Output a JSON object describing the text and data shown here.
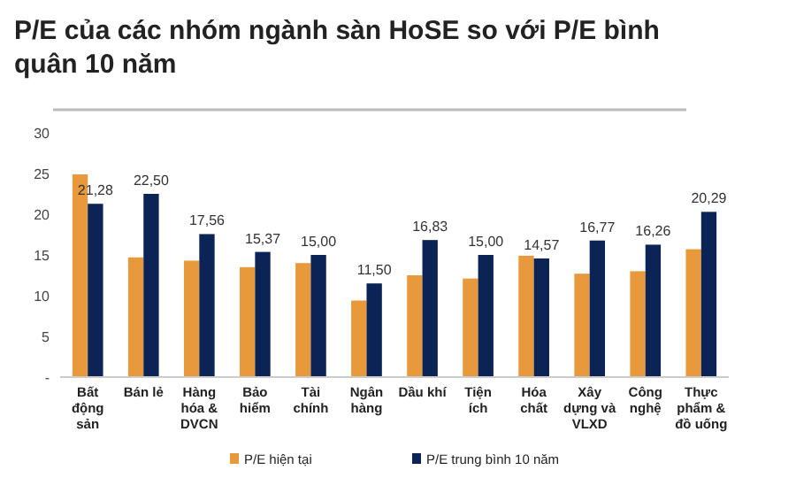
{
  "chart_data": {
    "type": "bar",
    "title": "P/E của các nhóm ngành sàn HoSE so với P/E bình quân 10 năm",
    "categories": [
      "Bất động sản",
      "Bán lẻ",
      "Hàng hóa & DVCN",
      "Bảo hiểm",
      "Tài chính",
      "Ngân hàng",
      "Dầu khí",
      "Tiện ích",
      "Hóa chất",
      "Xây dựng và VLXD",
      "Công nghệ",
      "Thực phẩm & đồ uống"
    ],
    "series": [
      {
        "name": "P/E hiện tại",
        "color": "#e8993c",
        "values": [
          24.9,
          14.7,
          14.3,
          13.5,
          14.0,
          9.4,
          12.5,
          12.1,
          14.9,
          12.7,
          13.0,
          15.7
        ]
      },
      {
        "name": "P/E trung bình 10 năm",
        "color": "#0c2356",
        "values": [
          21.28,
          22.5,
          17.56,
          15.37,
          15.0,
          11.5,
          16.83,
          15.0,
          14.57,
          16.77,
          16.26,
          20.29
        ],
        "value_labels": [
          "21,28",
          "22,50",
          "17,56",
          "15,37",
          "15,00",
          "11,50",
          "16,83",
          "15,00",
          "14,57",
          "16,77",
          "16,26",
          "20,29"
        ]
      }
    ],
    "ylim": [
      0,
      30
    ],
    "yticks": [
      {
        "value": 0,
        "label": "-"
      },
      5,
      10,
      15,
      20,
      25,
      30
    ],
    "grid": false,
    "legend": "bottom"
  }
}
